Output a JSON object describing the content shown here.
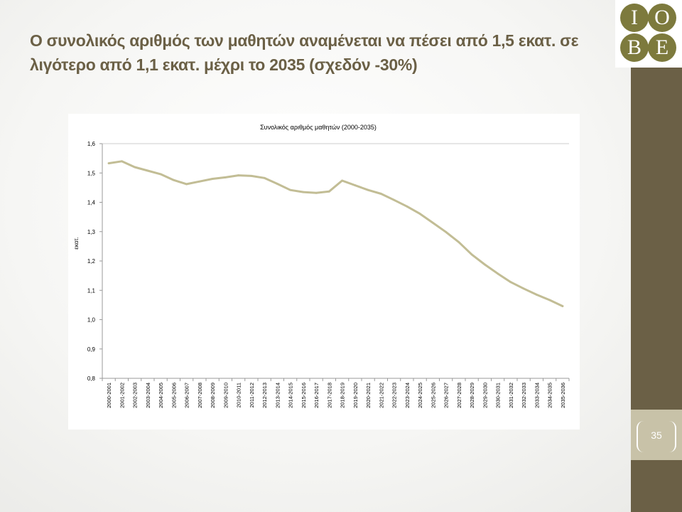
{
  "slide": {
    "title": "Ο συνολικός αριθμός των μαθητών αναμένεται να πέσει από 1,5 εκατ. σε λιγότερο από 1,1 εκατ. μέχρι το 2035  (σχεδόν -30%)",
    "page_number": "35"
  },
  "logo": {
    "letters": [
      "I",
      "O",
      "B",
      "E"
    ]
  },
  "colors": {
    "sidebar": "#6b6046",
    "page_number_bg": "#c8c2a8",
    "line": "#c2bd95",
    "title": "#6b6046",
    "logo": "#7d7a3d"
  },
  "chart_data": {
    "type": "line",
    "title": "Συνολικός αριθμός μαθητών (2000-2035)",
    "xlabel": "",
    "ylabel": "εκατ.",
    "ylim": [
      0.8,
      1.6
    ],
    "yticks": [
      "1,6",
      "1,5",
      "1,4",
      "1,3",
      "1,2",
      "1,1",
      "1,0",
      "0,9",
      "0,8"
    ],
    "grid": false,
    "legend": "none",
    "categories": [
      "2000-2001",
      "2001-2002",
      "2002-2003",
      "2003-2004",
      "2004-2005",
      "2005-2006",
      "2006-2007",
      "2007-2008",
      "2008-2009",
      "2009-2010",
      "2010-2011",
      "2011-2012",
      "2012-2013",
      "2013-2014",
      "2014-2015",
      "2015-2016",
      "2016-2017",
      "2017-2018",
      "2018-2019",
      "2019-2020",
      "2020-2021",
      "2021-2022",
      "2022-2023",
      "2023-2024",
      "2024-2025",
      "2025-2026",
      "2026-2027",
      "2027-2028",
      "2028-2029",
      "2029-2030",
      "2030-2031",
      "2031-2032",
      "2032-2033",
      "2033-2034",
      "2034-2035",
      "2035-2036"
    ],
    "series": [
      {
        "values": [
          1.533,
          1.54,
          1.52,
          1.508,
          1.496,
          1.476,
          1.462,
          1.471,
          1.48,
          1.485,
          1.492,
          1.49,
          1.483,
          1.463,
          1.442,
          1.435,
          1.432,
          1.437,
          1.474,
          1.458,
          1.442,
          1.429,
          1.408,
          1.386,
          1.361,
          1.33,
          1.299,
          1.264,
          1.222,
          1.188,
          1.157,
          1.128,
          1.106,
          1.085,
          1.067,
          1.046
        ]
      }
    ]
  }
}
